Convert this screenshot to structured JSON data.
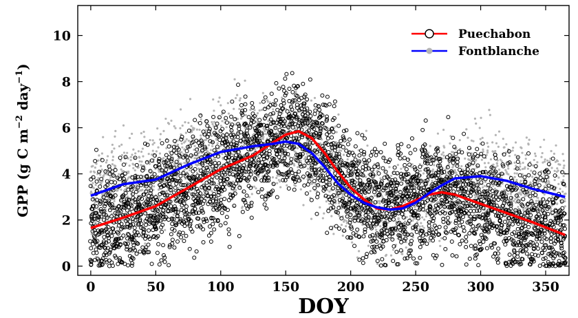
{
  "chart_data": {
    "type": "scatter",
    "title": "",
    "xlabel": "DOY",
    "ylabel": {
      "prefix": "GPP (g C m",
      "exp1": "−2",
      "middle": " day",
      "exp2": "−1",
      "suffix": ")"
    },
    "xlim": [
      -10,
      368
    ],
    "ylim": [
      -0.4,
      11.3
    ],
    "xticks": [
      0,
      50,
      100,
      150,
      200,
      250,
      300,
      350
    ],
    "yticks": [
      0,
      2,
      4,
      6,
      8,
      10
    ],
    "grid": false,
    "legend_position": "top-right",
    "series": [
      {
        "name": "Puechabon",
        "color": "#ff0000",
        "marker": "open-circle",
        "marker_color": "#000000",
        "smooth_curve": {
          "x": [
            0,
            25,
            50,
            75,
            100,
            125,
            140,
            150,
            160,
            170,
            180,
            190,
            200,
            210,
            220,
            230,
            240,
            250,
            260,
            270,
            280,
            300,
            320,
            340,
            365
          ],
          "y": [
            1.65,
            2.1,
            2.6,
            3.4,
            4.2,
            4.8,
            5.35,
            5.7,
            5.85,
            5.55,
            4.9,
            4.1,
            3.4,
            2.9,
            2.5,
            2.45,
            2.6,
            2.85,
            3.1,
            3.2,
            3.1,
            2.7,
            2.3,
            1.9,
            1.35
          ]
        }
      },
      {
        "name": "Fontblanche",
        "color": "#0000ff",
        "marker": "filled-dot",
        "marker_color": "#b4b4b4",
        "smooth_curve": {
          "x": [
            0,
            25,
            50,
            75,
            100,
            125,
            140,
            150,
            160,
            170,
            180,
            190,
            200,
            210,
            220,
            230,
            240,
            250,
            260,
            270,
            280,
            300,
            320,
            340,
            365
          ],
          "y": [
            3.05,
            3.55,
            3.75,
            4.4,
            4.95,
            5.2,
            5.3,
            5.4,
            5.3,
            4.9,
            4.3,
            3.6,
            3.1,
            2.75,
            2.55,
            2.45,
            2.5,
            2.75,
            3.15,
            3.5,
            3.8,
            3.9,
            3.7,
            3.35,
            3.0
          ]
        }
      }
    ]
  }
}
